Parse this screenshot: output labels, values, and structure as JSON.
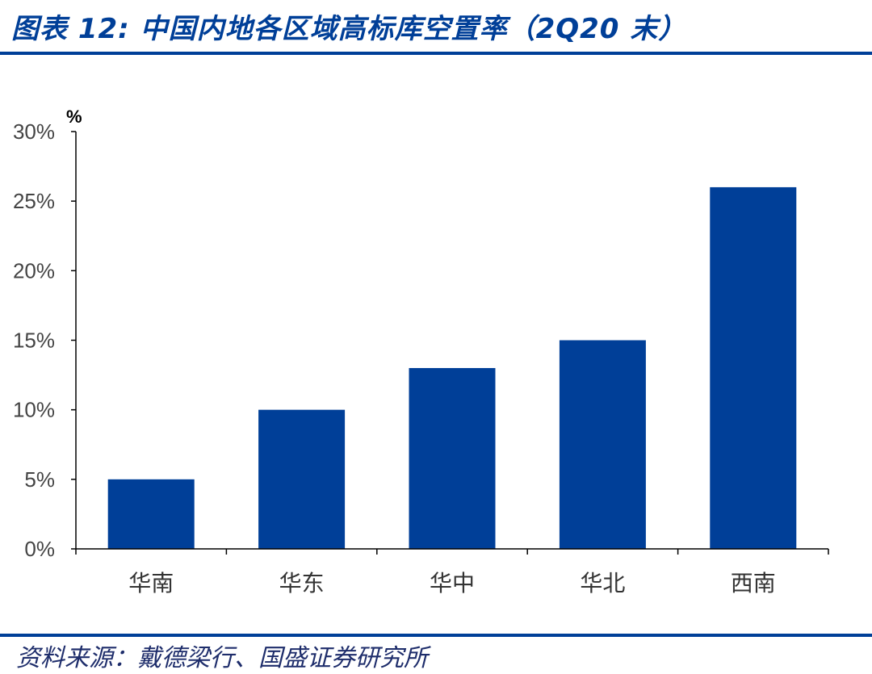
{
  "figure": {
    "title": "图表 12:  中国内地各区域高标库空置率（2Q20 末）",
    "source": "资料来源：戴德梁行、国盛证券研究所",
    "accent_color": "#003f98",
    "bar_color": "#003f98"
  },
  "chart_data": {
    "type": "bar",
    "categories": [
      "华南",
      "华东",
      "华中",
      "华北",
      "西南"
    ],
    "values": [
      5,
      10,
      13,
      15,
      26
    ],
    "unit_label": "%",
    "yticks": [
      "0%",
      "5%",
      "10%",
      "15%",
      "20%",
      "25%",
      "30%"
    ],
    "ylim": [
      0,
      30
    ],
    "grid": false,
    "legend": "none"
  }
}
